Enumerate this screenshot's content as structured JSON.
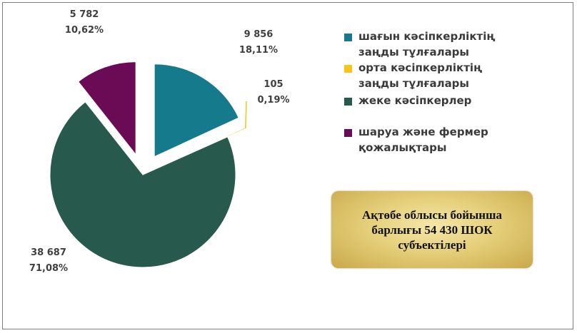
{
  "chart_data": {
    "type": "pie",
    "slices": [
      {
        "label": "шағын кәсіпкерліктің\nзаңды тұлғалары",
        "value": 9856,
        "value_label": "9 856",
        "percent_label": "18,11%",
        "color": "#157a8c"
      },
      {
        "label": "орта кәсіпкерліктің\nзаңды тұлғалары",
        "value": 105,
        "value_label": "105",
        "percent_label": "0,19%",
        "color": "#f5c518"
      },
      {
        "label": "жеке кәсіпкерлер",
        "value": 38687,
        "value_label": "38 687",
        "percent_label": "71,08%",
        "color": "#275a4c"
      },
      {
        "label": "шаруа және фермер\nқожалықтары",
        "value": 5782,
        "value_label": "5 782",
        "percent_label": "10,62%",
        "color": "#6b0a55"
      }
    ],
    "legend_position": "right",
    "exploded": true
  },
  "summary": {
    "text": "Ақтөбе облысы бойынша\nбарлығы 54 430 ШОК\nсубъектілері"
  }
}
